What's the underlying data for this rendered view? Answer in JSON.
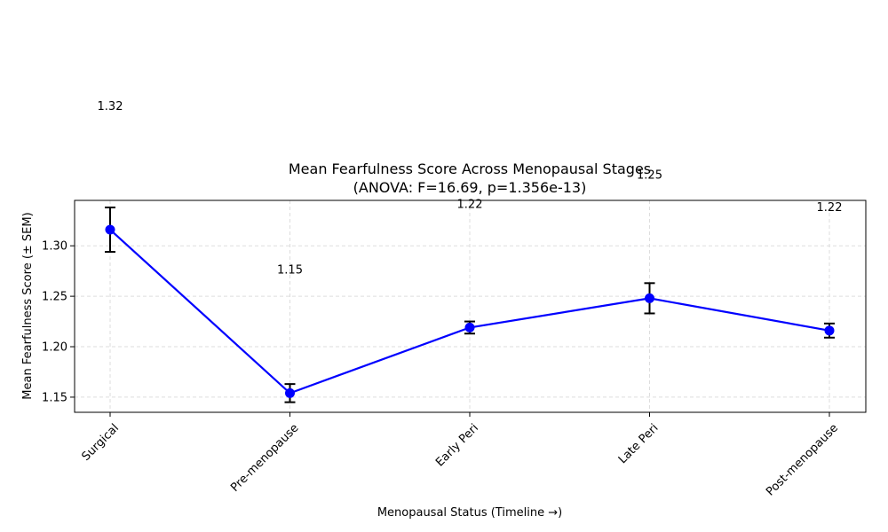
{
  "chart_data": {
    "type": "line",
    "title_line1": "Mean Fearfulness Score Across Menopausal Stages",
    "title_line2": "(ANOVA: F=16.69, p=1.356e-13)",
    "xlabel": "Menopausal Status (Timeline →)",
    "ylabel": "Mean Fearfulness Score (± SEM)",
    "categories": [
      "Surgical",
      "Pre-menopause",
      "Early Peri",
      "Late Peri",
      "Post-menopause"
    ],
    "values": [
      1.316,
      1.154,
      1.219,
      1.248,
      1.216
    ],
    "sem": [
      0.022,
      0.009,
      0.006,
      0.015,
      0.007
    ],
    "data_labels": [
      "1.32",
      "1.15",
      "1.22",
      "1.25",
      "1.22"
    ],
    "ylim": [
      1.135,
      1.345
    ],
    "yticks": [
      1.15,
      1.2,
      1.25,
      1.3
    ],
    "ytick_labels": [
      "1.15",
      "1.20",
      "1.25",
      "1.30"
    ],
    "grid": true,
    "line_color": "#0000ff",
    "marker_color": "#0000ff",
    "errorbar_color": "#000000",
    "grid_color": "#dddddd"
  }
}
